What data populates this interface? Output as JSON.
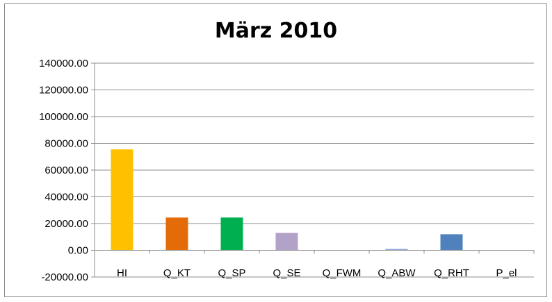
{
  "chart_data": {
    "type": "bar",
    "title": "März 2010",
    "xlabel": "",
    "ylabel": "",
    "ylim": [
      -20000,
      140000
    ],
    "ytick_step": 20000,
    "ytick_labels": [
      "-20000.00",
      "0.00",
      "20000.00",
      "40000.00",
      "60000.00",
      "80000.00",
      "100000.00",
      "120000.00",
      "140000.00"
    ],
    "grid": true,
    "legend": "none",
    "categories": [
      "HI",
      "Q_KT",
      "Q_SP",
      "Q_SE",
      "Q_FWM",
      "Q_ABW",
      "Q_RHT",
      "P_el"
    ],
    "values": [
      75500,
      24500,
      24500,
      13000,
      0,
      1000,
      12000,
      0
    ],
    "colors": [
      "#FFC000",
      "#E36C09",
      "#00B050",
      "#B3A2C7",
      "#4BACC6",
      "#8EA9DB",
      "#4F81BD",
      "#C0504D"
    ]
  }
}
